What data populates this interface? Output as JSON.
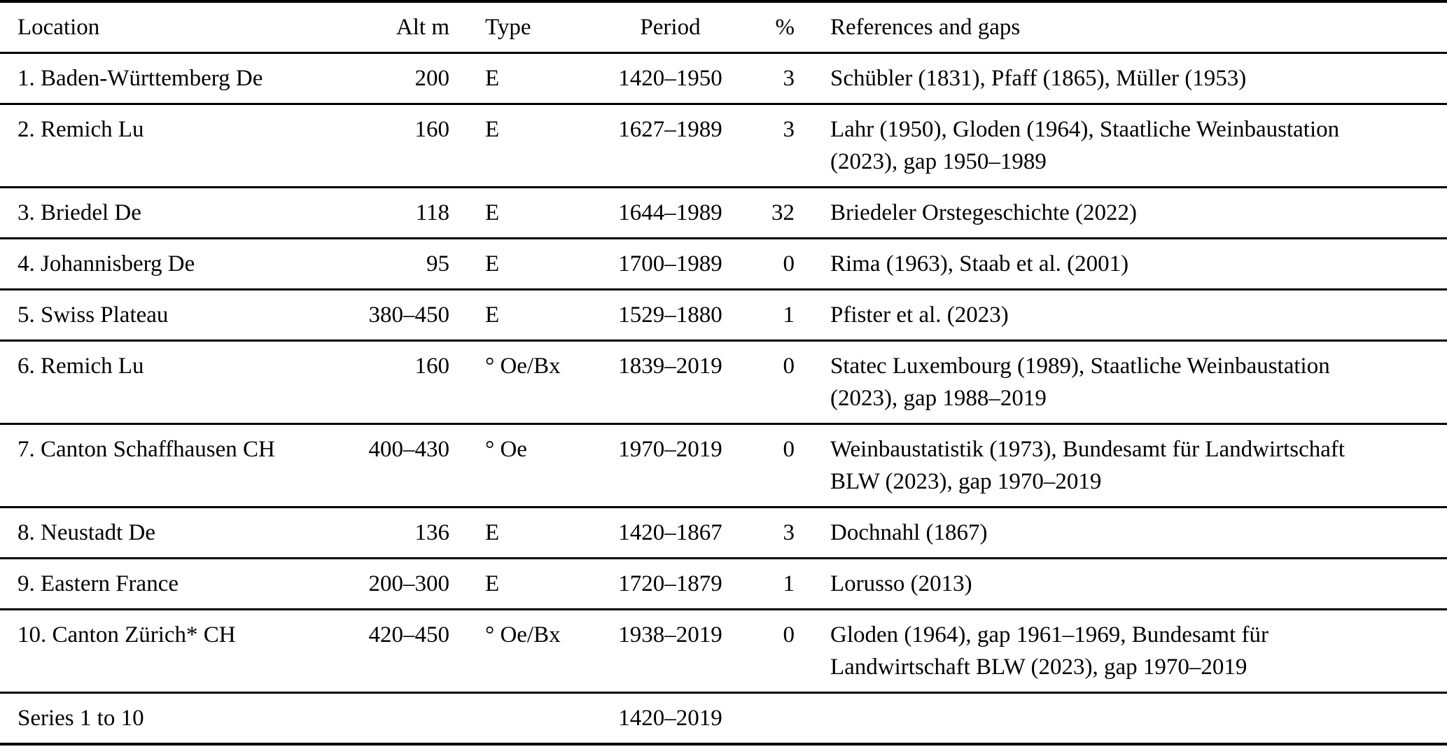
{
  "colors": {
    "text": "#000000",
    "rule": "#000000",
    "background": "#ffffff"
  },
  "table": {
    "columns": [
      "Location",
      "Alt m",
      "Type",
      "Period",
      "%",
      "References and gaps"
    ],
    "rows": [
      {
        "location": "1. Baden-Württemberg De",
        "alt": "200",
        "type": "E",
        "period": "1420–1950",
        "pct": "3",
        "refs": "Schübler (1831), Pfaff (1865), Müller (1953)"
      },
      {
        "location": "2. Remich Lu",
        "alt": "160",
        "type": "E",
        "period": "1627–1989",
        "pct": "3",
        "refs": "Lahr (1950), Gloden (1964), Staatliche Weinbaustation\n(2023), gap 1950–1989"
      },
      {
        "location": "3. Briedel De",
        "alt": "118",
        "type": "E",
        "period": "1644–1989",
        "pct": "32",
        "refs": "Briedeler Orstegeschichte (2022)"
      },
      {
        "location": "4. Johannisberg De",
        "alt": "95",
        "type": "E",
        "period": "1700–1989",
        "pct": "0",
        "refs": "Rima (1963), Staab et al. (2001)"
      },
      {
        "location": "5. Swiss Plateau",
        "alt": "380–450",
        "type": "E",
        "period": "1529–1880",
        "pct": "1",
        "refs": "Pfister et al. (2023)"
      },
      {
        "location": "6. Remich Lu",
        "alt": "160",
        "type": "° Oe/Bx",
        "period": "1839–2019",
        "pct": "0",
        "refs": "Statec Luxembourg (1989), Staatliche Weinbaustation\n(2023), gap 1988–2019"
      },
      {
        "location": "7. Canton Schaffhausen CH",
        "alt": "400–430",
        "type": "° Oe",
        "period": "1970–2019",
        "pct": "0",
        "refs": "Weinbaustatistik (1973), Bundesamt für Landwirtschaft\nBLW (2023), gap 1970–2019"
      },
      {
        "location": "8. Neustadt De",
        "alt": "136",
        "type": "E",
        "period": "1420–1867",
        "pct": "3",
        "refs": "Dochnahl (1867)"
      },
      {
        "location": "9. Eastern France",
        "alt": "200–300",
        "type": "E",
        "period": "1720–1879",
        "pct": "1",
        "refs": "Lorusso (2013)"
      },
      {
        "location": "10. Canton Zürich* CH",
        "alt": "420–450",
        "type": "° Oe/Bx",
        "period": "1938–2019",
        "pct": "0",
        "refs": "Gloden (1964), gap 1961–1969, Bundesamt für\nLandwirtschaft BLW (2023), gap 1970–2019"
      }
    ],
    "footer": {
      "location": "Series 1 to 10",
      "alt": "",
      "type": "",
      "period": "1420–2019",
      "pct": "",
      "refs": ""
    }
  }
}
